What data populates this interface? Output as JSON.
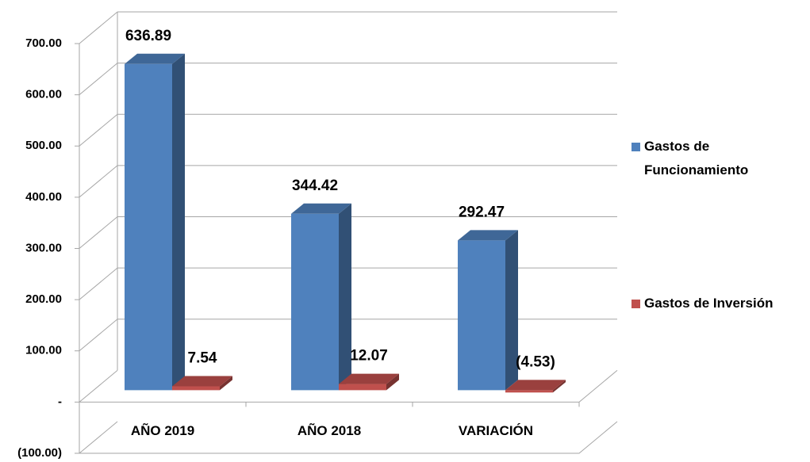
{
  "chart_data": {
    "type": "bar3d",
    "categories": [
      "AÑO 2019",
      "AÑO 2018",
      "VARIACIÓN"
    ],
    "series": [
      {
        "name": "Gastos de Funcionamiento",
        "color": "#4f81bd",
        "values": [
          636.89,
          344.42,
          292.47
        ],
        "value_labels": [
          "636.89",
          "344.42",
          "292.47"
        ]
      },
      {
        "name": "Gastos de Inversión",
        "color": "#c0504d",
        "values": [
          7.54,
          12.07,
          -4.53
        ],
        "value_labels": [
          "7.54",
          "12.07",
          "(4.53)"
        ]
      }
    ],
    "ylim": [
      -100,
      700
    ],
    "yticks": [
      {
        "value": -100,
        "label": "(100.00)"
      },
      {
        "value": 0,
        "label": "-"
      },
      {
        "value": 100,
        "label": "100.00"
      },
      {
        "value": 200,
        "label": "200.00"
      },
      {
        "value": 300,
        "label": "300.00"
      },
      {
        "value": 400,
        "label": "400.00"
      },
      {
        "value": 500,
        "label": "500.00"
      },
      {
        "value": 600,
        "label": "600.00"
      },
      {
        "value": 700,
        "label": "700.00"
      }
    ],
    "grid": true,
    "legend": "right"
  }
}
